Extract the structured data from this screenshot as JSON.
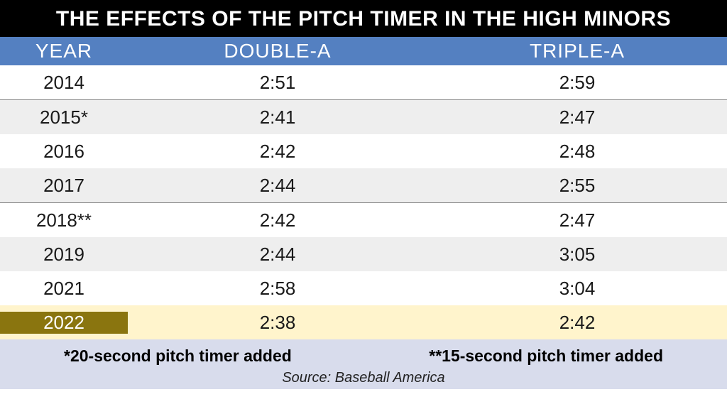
{
  "title": "THE EFFECTS OF THE PITCH TIMER IN THE HIGH MINORS",
  "columns": [
    "YEAR",
    "DOUBLE-A",
    "TRIPLE-A"
  ],
  "header_bg": "#5480c1",
  "header_text_color": "#ffffff",
  "header_fontsize": 28,
  "row_fontsize": 26,
  "row_alt_bg": "#eeeeee",
  "row_plain_bg": "#ffffff",
  "divider_color": "#888888",
  "highlight_year_bg": "#8a750f",
  "highlight_year_text": "#ffffff",
  "highlight_data_bg": "#fff4cc",
  "footer_bg": "#d8dcec",
  "rows": [
    {
      "year": "2014",
      "double_a": "2:51",
      "triple_a": "2:59",
      "alt": false
    },
    {
      "year": "2015*",
      "double_a": "2:41",
      "triple_a": "2:47",
      "alt": true
    },
    {
      "year": "2016",
      "double_a": "2:42",
      "triple_a": "2:48",
      "alt": false
    },
    {
      "year": "2017",
      "double_a": "2:44",
      "triple_a": "2:55",
      "alt": true
    },
    {
      "year": "2018**",
      "double_a": "2:42",
      "triple_a": "2:47",
      "alt": false
    },
    {
      "year": "2019",
      "double_a": "2:44",
      "triple_a": "3:05",
      "alt": true
    },
    {
      "year": "2021",
      "double_a": "2:58",
      "triple_a": "3:04",
      "alt": false
    },
    {
      "year": "2022",
      "double_a": "2:38",
      "triple_a": "2:42",
      "alt": true,
      "highlight": true
    }
  ],
  "dividers_after": [
    "2014",
    "2017"
  ],
  "note1": "*20-second pitch timer added",
  "note2": "**15-second pitch timer added",
  "source": "Source: Baseball America"
}
